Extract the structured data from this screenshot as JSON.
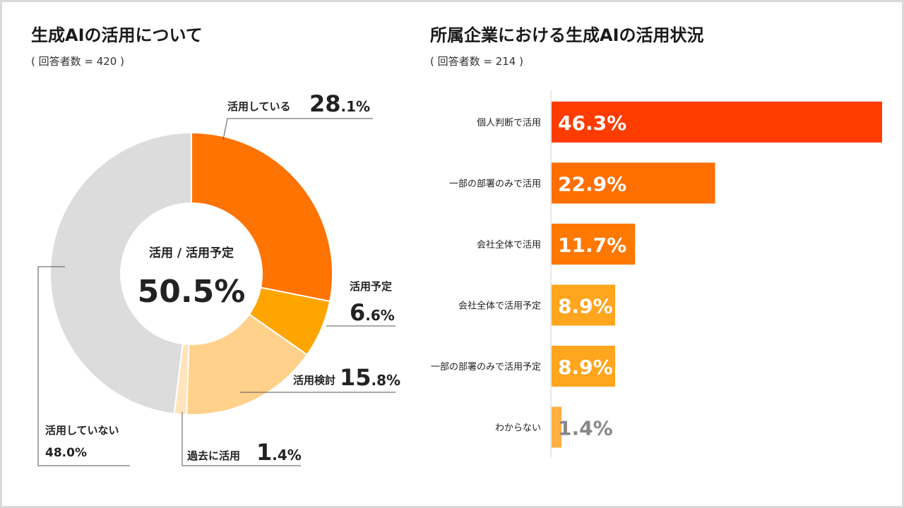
{
  "left": {
    "title": "生成AIの活用について",
    "respondents": "( 回答者数 = 420 )"
  },
  "right": {
    "title": "所属企業における生成AIの活用状況",
    "respondents": "( 回答者数 = 214 )"
  },
  "chart_data": [
    {
      "type": "pie",
      "title": "生成AIの活用について",
      "center_label": "活用 / 活用予定",
      "center_value": "50.5%",
      "slices": [
        {
          "label": "活用している",
          "value": 28.1,
          "int": "28",
          "dec": ".1%",
          "color": "#ff7300"
        },
        {
          "label": "活用予定",
          "value": 6.6,
          "int": "6",
          "dec": ".6%",
          "color": "#ffa500"
        },
        {
          "label": "活用検討",
          "value": 15.8,
          "int": "15",
          "dec": ".8%",
          "color": "#ffd18a"
        },
        {
          "label": "過去に活用",
          "value": 1.4,
          "int": "1",
          "dec": ".4%",
          "color": "#ffe4bc"
        },
        {
          "label": "活用していない",
          "value": 48.0,
          "int": "48.0%",
          "dec": "",
          "color": "#dcdcdc"
        }
      ]
    },
    {
      "type": "bar",
      "title": "所属企業における生成AIの活用状況",
      "categories": [
        "個人判断で活用",
        "一部の部署のみで活用",
        "会社全体で活用",
        "会社全体で活用予定",
        "一部の部署のみで活用予定",
        "わからない"
      ],
      "values": [
        46.3,
        22.9,
        11.7,
        8.9,
        8.9,
        1.4
      ],
      "value_labels": [
        "46.3%",
        "22.9%",
        "11.7%",
        "8.9%",
        "8.9%",
        "1.4%"
      ],
      "colors": [
        "#ff3c00",
        "#ff6e00",
        "#ff7800",
        "#ffa51e",
        "#ffa51e",
        "#ffb040"
      ],
      "label_colors": [
        "#ffffff",
        "#ffffff",
        "#ffffff",
        "#ffffff",
        "#ffffff",
        "#888888"
      ]
    }
  ]
}
